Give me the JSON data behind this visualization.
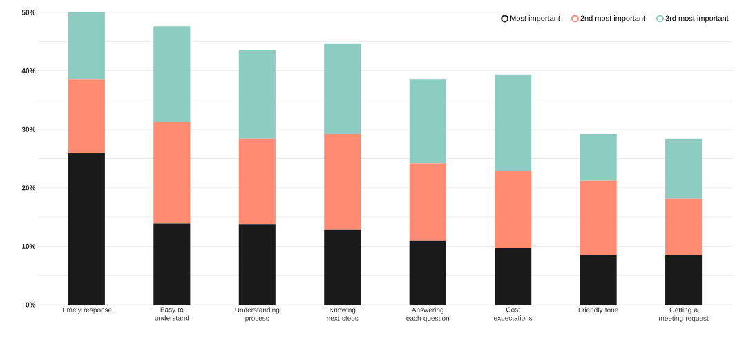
{
  "chart_data": {
    "type": "bar",
    "stacked": true,
    "categories": [
      "Timely response",
      "Easy to understand",
      "Understanding process",
      "Knowing next steps",
      "Answering each question",
      "Cost expectations",
      "Friendly tone",
      "Getting a meeting request"
    ],
    "series": [
      {
        "name": "Most important",
        "color": "#1a1a1a",
        "values": [
          26.0,
          13.9,
          13.8,
          12.8,
          10.9,
          9.7,
          8.5,
          8.5
        ]
      },
      {
        "name": "2nd most important",
        "color": "#ff8c72",
        "values": [
          12.5,
          17.4,
          14.6,
          16.4,
          13.3,
          13.2,
          12.7,
          9.6
        ]
      },
      {
        "name": "3rd most important",
        "color": "#8dcdc1",
        "values": [
          11.5,
          16.3,
          15.1,
          15.5,
          14.3,
          16.5,
          8.0,
          10.3
        ]
      }
    ],
    "ylim": [
      0,
      50
    ],
    "yticks": [
      {
        "value": 0,
        "label": "0%"
      },
      {
        "value": 5,
        "label": null
      },
      {
        "value": 10,
        "label": "10%"
      },
      {
        "value": 15,
        "label": null
      },
      {
        "value": 20,
        "label": "20%"
      },
      {
        "value": 25,
        "label": null
      },
      {
        "value": 30,
        "label": "30%"
      },
      {
        "value": 35,
        "label": null
      },
      {
        "value": 40,
        "label": "40%"
      },
      {
        "value": 45,
        "label": null
      },
      {
        "value": 50,
        "label": "50%"
      }
    ],
    "grid": "y",
    "legend": "top right"
  }
}
